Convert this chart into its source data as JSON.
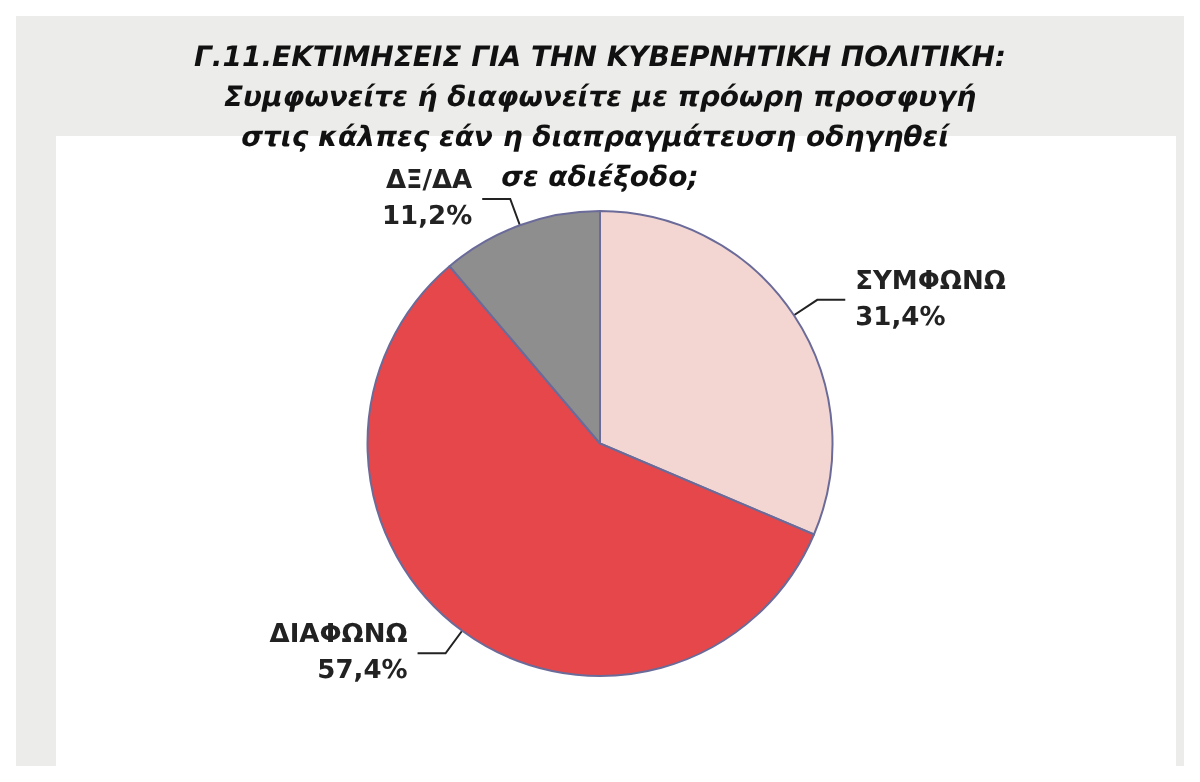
{
  "chart_data": {
    "type": "pie",
    "title": "Γ.11.ΕΚΤΙΜΗΣΕΙΣ ΓΙΑ ΤΗΝ ΚΥΒΕΡΝΗΤΙΚΗ ΠΟΛΙΤΙΚΗ: Συμφωνείτε ή διαφωνείτε με πρόωρη προσφυγή στις κάλπες εάν η διαπραγμάτευση οδηγηθεί σε αδιέξοδο;",
    "categories": [
      "ΣΥΜΦΩΝΩ",
      "ΔΙΑΦΩΝΩ",
      "ΔΞ/ΔΑ"
    ],
    "values": [
      31.4,
      57.4,
      11.2
    ],
    "value_labels": [
      "31,4%",
      "57,4%",
      "11,2%"
    ],
    "colors": [
      "#f3d6d2",
      "#e5474b",
      "#8e8e8e"
    ],
    "legend": false
  }
}
